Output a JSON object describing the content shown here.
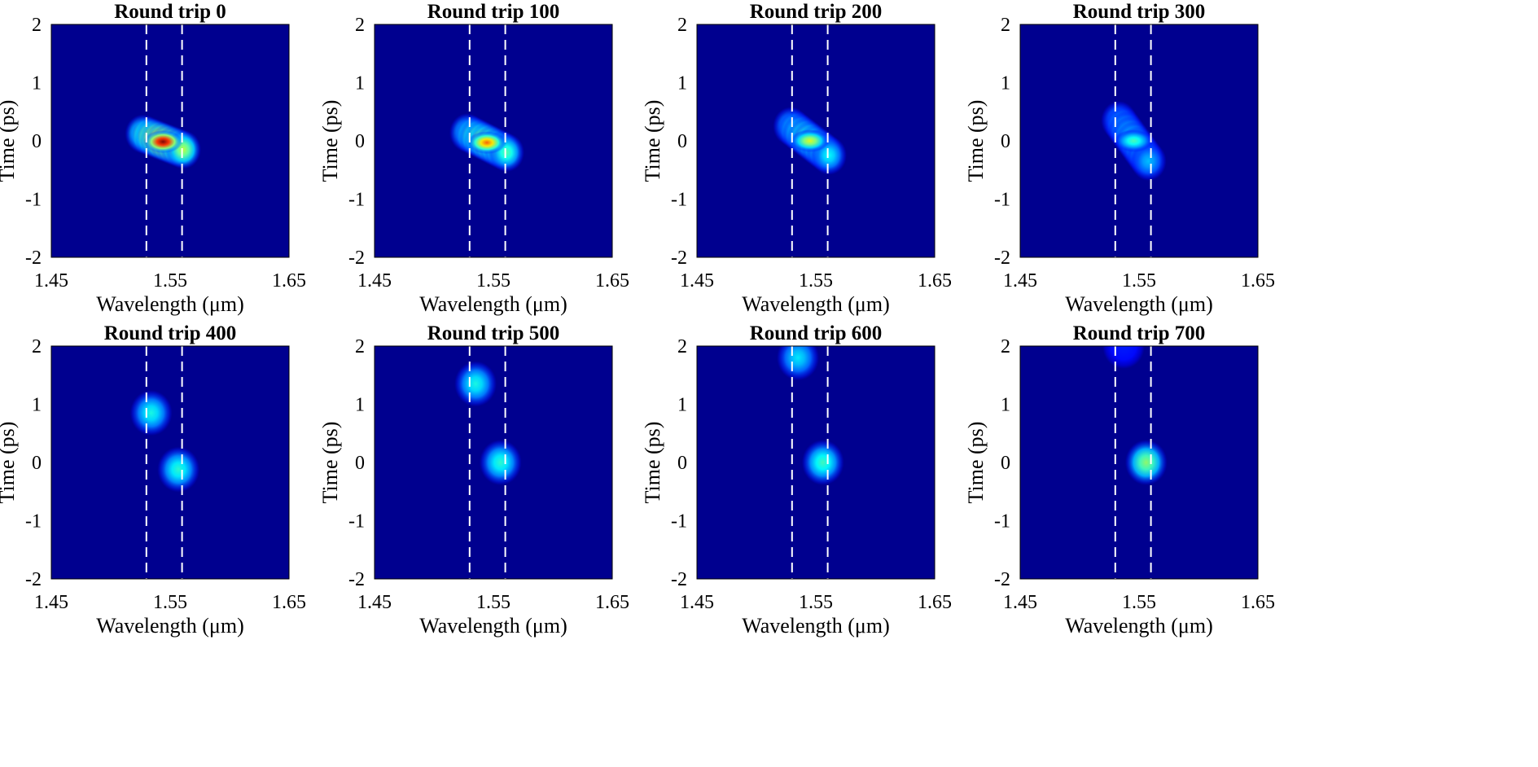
{
  "chart_data": [
    {
      "type": "heatmap",
      "title": "Round trip 0",
      "xlabel": "Wavelength (μm)",
      "ylabel": "Time (ps)",
      "xlim": [
        1.45,
        1.65
      ],
      "ylim": [
        2,
        -2
      ],
      "xticks": [
        "1.45",
        "1.55",
        "1.65"
      ],
      "yticks": [
        "-2",
        "-1",
        "0",
        "1",
        "2"
      ],
      "dashed_lines_x": [
        1.53,
        1.56
      ],
      "features": [
        {
          "wavelength_start": 1.527,
          "wavelength_end": 1.561,
          "time_start": 0.12,
          "time_end": -0.15,
          "peak_intensity": 1.0
        }
      ]
    },
    {
      "type": "heatmap",
      "title": "Round trip 100",
      "xlabel": "Wavelength (μm)",
      "ylabel": "Time (ps)",
      "xlim": [
        1.45,
        1.65
      ],
      "ylim": [
        2,
        -2
      ],
      "xticks": [
        "1.45",
        "1.55",
        "1.65"
      ],
      "yticks": [
        "-2",
        "-1",
        "0",
        "1",
        "2"
      ],
      "dashed_lines_x": [
        1.53,
        1.56
      ],
      "features": [
        {
          "wavelength_start": 1.528,
          "wavelength_end": 1.561,
          "time_start": 0.14,
          "time_end": -0.2,
          "peak_intensity": 0.78
        }
      ]
    },
    {
      "type": "heatmap",
      "title": "Round trip 200",
      "xlabel": "Wavelength (μm)",
      "ylabel": "Time (ps)",
      "xlim": [
        1.45,
        1.65
      ],
      "ylim": [
        2,
        -2
      ],
      "xticks": [
        "1.45",
        "1.55",
        "1.65"
      ],
      "yticks": [
        "-2",
        "-1",
        "0",
        "1",
        "2"
      ],
      "dashed_lines_x": [
        1.53,
        1.56
      ],
      "features": [
        {
          "wavelength_start": 1.529,
          "wavelength_end": 1.561,
          "time_start": 0.25,
          "time_end": -0.25,
          "peak_intensity": 0.6
        }
      ]
    },
    {
      "type": "heatmap",
      "title": "Round trip 300",
      "xlabel": "Wavelength (μm)",
      "ylabel": "Time (ps)",
      "xlim": [
        1.45,
        1.65
      ],
      "ylim": [
        2,
        -2
      ],
      "xticks": [
        "1.45",
        "1.55",
        "1.65"
      ],
      "yticks": [
        "-2",
        "-1",
        "0",
        "1",
        "2"
      ],
      "dashed_lines_x": [
        1.53,
        1.56
      ],
      "features": [
        {
          "wavelength_start": 1.533,
          "wavelength_end": 1.558,
          "time_start": 0.35,
          "time_end": -0.35,
          "peak_intensity": 0.45
        }
      ]
    },
    {
      "type": "heatmap",
      "title": "Round trip 400",
      "xlabel": "Wavelength (μm)",
      "ylabel": "Time (ps)",
      "xlim": [
        1.45,
        1.65
      ],
      "ylim": [
        2,
        -2
      ],
      "xticks": [
        "1.45",
        "1.55",
        "1.65"
      ],
      "yticks": [
        "-2",
        "-1",
        "0",
        "1",
        "2"
      ],
      "dashed_lines_x": [
        1.53,
        1.56
      ],
      "features": [
        {
          "wavelength": 1.557,
          "time": -0.12,
          "peak_intensity": 0.42
        },
        {
          "wavelength": 1.534,
          "time": 0.85,
          "peak_intensity": 0.4
        }
      ]
    },
    {
      "type": "heatmap",
      "title": "Round trip 500",
      "xlabel": "Wavelength (μm)",
      "ylabel": "Time (ps)",
      "xlim": [
        1.45,
        1.65
      ],
      "ylim": [
        2,
        -2
      ],
      "xticks": [
        "1.45",
        "1.55",
        "1.65"
      ],
      "yticks": [
        "-2",
        "-1",
        "0",
        "1",
        "2"
      ],
      "dashed_lines_x": [
        1.53,
        1.56
      ],
      "features": [
        {
          "wavelength": 1.556,
          "time": 0.0,
          "peak_intensity": 0.42
        },
        {
          "wavelength": 1.535,
          "time": 1.35,
          "peak_intensity": 0.4
        }
      ]
    },
    {
      "type": "heatmap",
      "title": "Round trip 600",
      "xlabel": "Wavelength (μm)",
      "ylabel": "Time (ps)",
      "xlim": [
        1.45,
        1.65
      ],
      "ylim": [
        2,
        -2
      ],
      "xticks": [
        "1.45",
        "1.55",
        "1.65"
      ],
      "yticks": [
        "-2",
        "-1",
        "0",
        "1",
        "2"
      ],
      "dashed_lines_x": [
        1.53,
        1.56
      ],
      "features": [
        {
          "wavelength": 1.556,
          "time": 0.0,
          "peak_intensity": 0.44
        },
        {
          "wavelength": 1.535,
          "time": 1.8,
          "peak_intensity": 0.36
        }
      ]
    },
    {
      "type": "heatmap",
      "title": "Round trip 700",
      "xlabel": "Wavelength (μm)",
      "ylabel": "Time (ps)",
      "xlim": [
        1.45,
        1.65
      ],
      "ylim": [
        2,
        -2
      ],
      "xticks": [
        "1.45",
        "1.55",
        "1.65"
      ],
      "yticks": [
        "-2",
        "-1",
        "0",
        "1",
        "2"
      ],
      "dashed_lines_x": [
        1.53,
        1.56
      ],
      "features": [
        {
          "wavelength": 1.556,
          "time": 0.0,
          "peak_intensity": 0.52
        },
        {
          "wavelength": 1.537,
          "time": 2.0,
          "peak_intensity": 0.15
        }
      ]
    }
  ],
  "colors": {
    "background": "#00008f",
    "dashed_line": "#ffffff"
  }
}
